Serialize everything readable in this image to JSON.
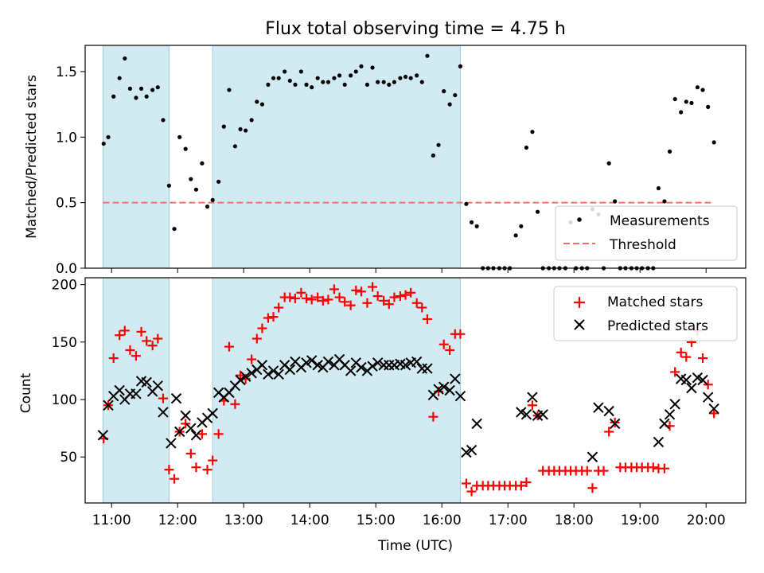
{
  "chart_data": [
    {
      "type": "scatter",
      "title": "Flux total observing time = 4.75 h",
      "xlabel": "",
      "ylabel": "Matched/Predicted stars",
      "xlim": [
        10.6,
        20.6
      ],
      "ylim": [
        0,
        1.7
      ],
      "yticks": [
        0.0,
        0.5,
        1.0,
        1.5
      ],
      "ytick_labels": [
        "0.0",
        "0.5",
        "1.0",
        "1.5"
      ],
      "shaded_intervals": [
        [
          10.87,
          11.87
        ],
        [
          12.53,
          16.28
        ]
      ],
      "threshold": 0.5,
      "legend_position": "lower right",
      "series": [
        {
          "name": "Measurements",
          "marker": "dot",
          "color": "#000000",
          "x": [
            10.88,
            10.95,
            11.03,
            11.12,
            11.2,
            11.28,
            11.37,
            11.45,
            11.53,
            11.62,
            11.7,
            11.78,
            11.87,
            11.95,
            12.03,
            12.12,
            12.2,
            12.28,
            12.37,
            12.45,
            12.53,
            12.62,
            12.7,
            12.78,
            12.87,
            12.95,
            13.03,
            13.12,
            13.2,
            13.28,
            13.37,
            13.45,
            13.53,
            13.62,
            13.7,
            13.78,
            13.87,
            13.95,
            14.03,
            14.12,
            14.2,
            14.28,
            14.37,
            14.45,
            14.53,
            14.62,
            14.7,
            14.78,
            14.87,
            14.95,
            15.03,
            15.12,
            15.2,
            15.28,
            15.37,
            15.45,
            15.53,
            15.62,
            15.7,
            15.78,
            15.87,
            15.95,
            16.03,
            16.12,
            16.2,
            16.28,
            16.37,
            16.45,
            16.53,
            16.62,
            16.7,
            16.78,
            16.87,
            16.95,
            17.03,
            17.12,
            17.2,
            17.28,
            17.37,
            17.45,
            17.53,
            17.62,
            17.7,
            17.78,
            17.87,
            17.95,
            18.03,
            18.12,
            18.2,
            18.28,
            18.37,
            18.45,
            18.53,
            18.62,
            18.7,
            18.78,
            18.87,
            18.95,
            19.03,
            19.12,
            19.2,
            19.28,
            19.37,
            19.45,
            19.53,
            19.62,
            19.7,
            19.78,
            19.87,
            19.95,
            20.03,
            20.12
          ],
          "y": [
            0.95,
            1.0,
            1.31,
            1.45,
            1.6,
            1.37,
            1.3,
            1.37,
            1.31,
            1.36,
            1.38,
            1.13,
            0.63,
            0.3,
            1.0,
            0.91,
            0.68,
            0.6,
            0.8,
            0.47,
            0.52,
            0.66,
            1.08,
            1.36,
            0.93,
            1.06,
            1.05,
            1.13,
            1.27,
            1.25,
            1.4,
            1.45,
            1.45,
            1.5,
            1.43,
            1.4,
            1.5,
            1.4,
            1.38,
            1.45,
            1.42,
            1.42,
            1.45,
            1.47,
            1.4,
            1.47,
            1.5,
            1.54,
            1.4,
            1.53,
            1.42,
            1.42,
            1.4,
            1.42,
            1.45,
            1.46,
            1.45,
            1.47,
            1.42,
            1.62,
            0.86,
            0.94,
            1.35,
            1.25,
            1.32,
            1.54,
            0.49,
            0.35,
            0.32,
            0.0,
            0.0,
            0.0,
            0.0,
            0.0,
            0.0,
            0.25,
            0.32,
            0.92,
            1.04,
            0.43,
            0.0,
            0.0,
            0.0,
            0.0,
            0.0,
            0.35,
            0.0,
            0.0,
            0.0,
            0.45,
            0.41,
            0.0,
            0.8,
            0.51,
            0.0,
            0.0,
            0.0,
            0.0,
            0.0,
            0.0,
            0.0,
            0.61,
            0.51,
            0.89,
            1.29,
            1.19,
            1.27,
            1.26,
            1.38,
            1.36,
            1.23,
            0.96
          ]
        },
        {
          "name": "Threshold",
          "marker": "dashed-line",
          "color": "#ff6b6b",
          "x": [
            10.87,
            20.12
          ],
          "y": [
            0.5,
            0.5
          ]
        }
      ]
    },
    {
      "type": "scatter",
      "title": "",
      "xlabel": "Time (UTC)",
      "ylabel": "Count",
      "xlim": [
        10.6,
        20.6
      ],
      "ylim": [
        10,
        206
      ],
      "yticks": [
        50,
        100,
        150,
        200
      ],
      "ytick_labels": [
        "50",
        "100",
        "150",
        "200"
      ],
      "xticks": [
        11,
        12,
        13,
        14,
        15,
        16,
        17,
        18,
        19,
        20
      ],
      "xtick_labels": [
        "11:00",
        "12:00",
        "13:00",
        "14:00",
        "15:00",
        "16:00",
        "17:00",
        "18:00",
        "19:00",
        "20:00"
      ],
      "shaded_intervals": [
        [
          10.87,
          11.87
        ],
        [
          12.53,
          16.28
        ]
      ],
      "legend_position": "upper right",
      "series": [
        {
          "name": "Matched stars",
          "marker": "plus",
          "color": "#ff0000",
          "x": [
            10.88,
            10.95,
            11.03,
            11.12,
            11.2,
            11.28,
            11.37,
            11.45,
            11.53,
            11.62,
            11.7,
            11.78,
            11.87,
            11.95,
            12.03,
            12.12,
            12.2,
            12.28,
            12.37,
            12.45,
            12.53,
            12.62,
            12.7,
            12.78,
            12.87,
            12.95,
            13.03,
            13.12,
            13.2,
            13.28,
            13.37,
            13.45,
            13.53,
            13.62,
            13.7,
            13.78,
            13.87,
            13.95,
            14.03,
            14.12,
            14.2,
            14.28,
            14.37,
            14.45,
            14.53,
            14.62,
            14.7,
            14.78,
            14.87,
            14.95,
            15.03,
            15.12,
            15.2,
            15.28,
            15.37,
            15.45,
            15.53,
            15.62,
            15.7,
            15.78,
            15.87,
            15.95,
            16.03,
            16.12,
            16.2,
            16.28,
            16.37,
            16.45,
            16.53,
            16.62,
            16.7,
            16.78,
            16.87,
            16.95,
            17.03,
            17.12,
            17.2,
            17.28,
            17.37,
            17.45,
            17.53,
            17.62,
            17.7,
            17.78,
            17.87,
            17.95,
            18.03,
            18.12,
            18.2,
            18.28,
            18.37,
            18.45,
            18.53,
            18.62,
            18.7,
            18.78,
            18.87,
            18.95,
            19.03,
            19.12,
            19.2,
            19.28,
            19.37,
            19.45,
            19.53,
            19.62,
            19.7,
            19.78,
            19.87,
            19.95,
            20.03,
            20.12
          ],
          "y": [
            66,
            95,
            136,
            156,
            160,
            143,
            138,
            159,
            151,
            147,
            153,
            101,
            39,
            31,
            72,
            79,
            53,
            41,
            70,
            39,
            47,
            70,
            99,
            146,
            96,
            121,
            118,
            135,
            153,
            162,
            171,
            172,
            180,
            189,
            189,
            188,
            193,
            188,
            187,
            189,
            186,
            187,
            196,
            189,
            185,
            182,
            195,
            194,
            184,
            198,
            190,
            186,
            183,
            189,
            190,
            191,
            193,
            184,
            180,
            170,
            85,
            107,
            148,
            143,
            157,
            157,
            27,
            20,
            25,
            25,
            25,
            25,
            25,
            25,
            25,
            25,
            25,
            28,
            95,
            86,
            38,
            38,
            38,
            38,
            38,
            38,
            38,
            38,
            38,
            23,
            38,
            38,
            72,
            80,
            41,
            41,
            41,
            41,
            41,
            41,
            41,
            40,
            40,
            77,
            124,
            141,
            137,
            150,
            160,
            136,
            113,
            88
          ]
        },
        {
          "name": "Predicted stars",
          "marker": "x",
          "color": "#000000",
          "x": [
            10.87,
            10.95,
            11.03,
            11.12,
            11.2,
            11.28,
            11.37,
            11.45,
            11.53,
            11.62,
            11.7,
            11.78,
            11.9,
            11.98,
            12.03,
            12.12,
            12.2,
            12.28,
            12.37,
            12.45,
            12.53,
            12.62,
            12.7,
            12.78,
            12.87,
            12.95,
            13.03,
            13.12,
            13.2,
            13.28,
            13.37,
            13.45,
            13.53,
            13.62,
            13.7,
            13.78,
            13.87,
            13.95,
            14.03,
            14.12,
            14.2,
            14.28,
            14.37,
            14.45,
            14.53,
            14.62,
            14.7,
            14.78,
            14.87,
            14.95,
            15.03,
            15.12,
            15.2,
            15.28,
            15.37,
            15.45,
            15.53,
            15.62,
            15.7,
            15.78,
            15.87,
            15.95,
            16.03,
            16.12,
            16.2,
            16.28,
            16.37,
            16.45,
            16.53,
            17.2,
            17.28,
            17.37,
            17.45,
            17.53,
            18.28,
            18.37,
            18.53,
            18.62,
            19.28,
            19.37,
            19.45,
            19.53,
            19.62,
            19.7,
            19.78,
            19.87,
            19.95,
            20.03,
            20.12
          ],
          "y": [
            69,
            95,
            103,
            108,
            100,
            105,
            105,
            116,
            115,
            107,
            112,
            89,
            62,
            101,
            72,
            86,
            75,
            69,
            80,
            84,
            88,
            106,
            102,
            106,
            112,
            117,
            120,
            123,
            126,
            130,
            122,
            125,
            122,
            130,
            126,
            133,
            128,
            132,
            134,
            130,
            128,
            133,
            130,
            135,
            130,
            125,
            132,
            128,
            125,
            129,
            132,
            130,
            130,
            130,
            131,
            130,
            132,
            133,
            127,
            127,
            104,
            109,
            111,
            108,
            118,
            103,
            54,
            56,
            79,
            89,
            87,
            102,
            86,
            87,
            50,
            93,
            90,
            79,
            63,
            79,
            87,
            96,
            118,
            117,
            110,
            119,
            117,
            102,
            92
          ]
        }
      ]
    }
  ]
}
